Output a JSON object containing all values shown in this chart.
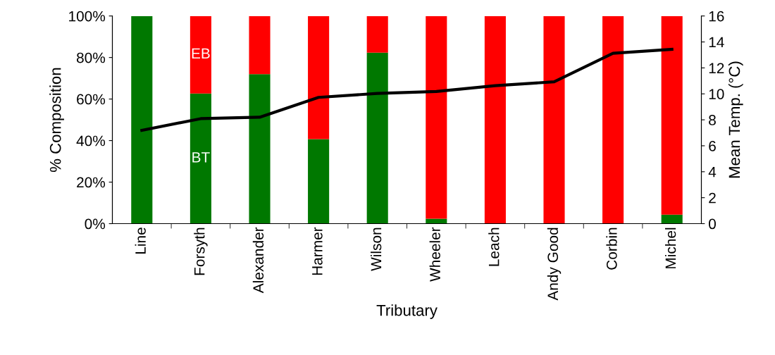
{
  "chart_data": {
    "type": "bar",
    "stacked": true,
    "xlabel": "Tributary",
    "ylabel": "% Composition",
    "y2label": "Mean Temp. (°C)",
    "categories": [
      "Line",
      "Forsyth",
      "Alexander",
      "Harmer",
      "Wilson",
      "Wheeler",
      "Leach",
      "Andy Good",
      "Corbin",
      "Michel"
    ],
    "series": [
      {
        "name": "BT",
        "color": "#007800",
        "values": [
          100,
          62.7,
          72,
          40.7,
          82.3,
          2.4,
          0,
          0,
          0,
          4.3
        ]
      },
      {
        "name": "EB",
        "color": "#ff0000",
        "values": [
          0,
          37.3,
          28,
          59.3,
          17.7,
          97.6,
          100,
          100,
          100,
          95.7
        ]
      },
      {
        "type": "line",
        "axis": "y2",
        "color": "#000000",
        "marker": "none",
        "line_style": "solid",
        "values": [
          7.19,
          8.09,
          8.2,
          9.73,
          10.03,
          10.18,
          10.63,
          10.93,
          13.13,
          13.43
        ]
      }
    ],
    "ylim": [
      0,
      100
    ],
    "yticks": [
      {
        "value": 0,
        "label": "0%"
      },
      {
        "value": 20,
        "label": "20%"
      },
      {
        "value": 40,
        "label": "40%"
      },
      {
        "value": 60,
        "label": "60%"
      },
      {
        "value": 80,
        "label": "80%"
      },
      {
        "value": 100,
        "label": "100%"
      }
    ],
    "y2lim": [
      0,
      16
    ],
    "y2ticks": [
      0,
      2,
      4,
      6,
      8,
      10,
      12,
      14,
      16
    ],
    "grid": false,
    "legend": false
  }
}
